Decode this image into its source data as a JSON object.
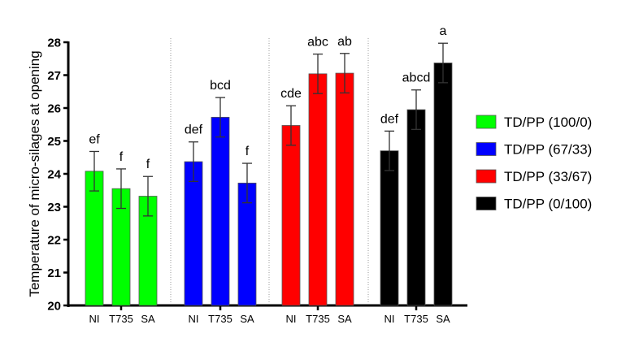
{
  "chart_data": {
    "type": "bar",
    "title": "",
    "xlabel": "",
    "ylabel": "Temperature of micro-silages at opening",
    "ylim": [
      20,
      28
    ],
    "yticks": [
      "20",
      "21",
      "22",
      "23",
      "24",
      "25",
      "26",
      "27",
      "28"
    ],
    "categories": [
      "NI",
      "T735",
      "SA"
    ],
    "legend_position": "right",
    "series": [
      {
        "name": "TD/PP (100/0)",
        "color": "#00ff00",
        "values": [
          24.08,
          23.55,
          23.32
        ],
        "errors": [
          0.6,
          0.6,
          0.6
        ],
        "letters": [
          "ef",
          "f",
          "f"
        ]
      },
      {
        "name": "TD/PP (67/33)",
        "color": "#0000ff",
        "values": [
          24.37,
          25.72,
          23.72
        ],
        "errors": [
          0.6,
          0.6,
          0.6
        ],
        "letters": [
          "def",
          "bcd",
          "f"
        ]
      },
      {
        "name": "TD/PP (33/67)",
        "color": "#ff0000",
        "values": [
          25.47,
          27.04,
          27.06
        ],
        "errors": [
          0.6,
          0.6,
          0.6
        ],
        "letters": [
          "cde",
          "abc",
          "ab"
        ]
      },
      {
        "name": "TD/PP (0/100)",
        "color": "#000000",
        "values": [
          24.7,
          25.95,
          27.37
        ],
        "errors": [
          0.6,
          0.6,
          0.6
        ],
        "letters": [
          "def",
          "abcd",
          "a"
        ]
      }
    ]
  }
}
